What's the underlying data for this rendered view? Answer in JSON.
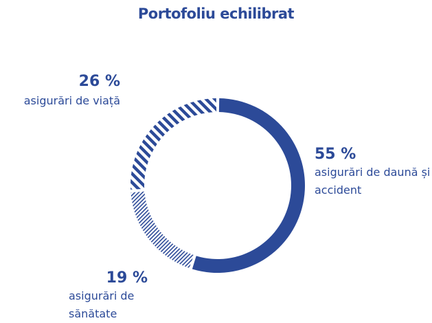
{
  "chart_data": {
    "type": "donut",
    "title": "Portofoliu echilibrat",
    "categories": [
      "asigurări de daună și accident",
      "asigurări de sănătate",
      "asigurări de viață"
    ],
    "values": [
      55,
      19,
      26
    ],
    "value_labels": [
      "55 %",
      "19 %",
      "26 %"
    ],
    "color": "#2c4a98"
  }
}
